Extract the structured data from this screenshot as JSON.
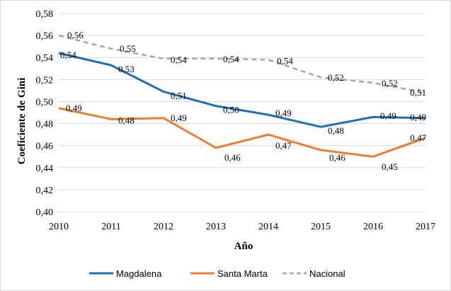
{
  "chart_data": {
    "type": "line",
    "title": "",
    "xlabel": "Año",
    "ylabel": "Coeficiente de Gini",
    "ylim": [
      0.4,
      0.58
    ],
    "y_step": 0.02,
    "grid": true,
    "legend_position": "bottom",
    "x": [
      "2010",
      "2011",
      "2012",
      "2013",
      "2014",
      "2015",
      "2016",
      "2017"
    ],
    "y_ticks": [
      "0,40",
      "0,42",
      "0,44",
      "0,46",
      "0,48",
      "0,50",
      "0,52",
      "0,54",
      "0,56",
      "0,58"
    ],
    "series": [
      {
        "name": "Magdalena",
        "color": "#1f6fb5",
        "style": "solid",
        "values": [
          0.544,
          0.533,
          0.509,
          0.496,
          0.488,
          0.477,
          0.486,
          0.485
        ],
        "labels": [
          "0,54",
          "0,53",
          "0,51",
          "0,50",
          "0,49",
          "0,48",
          "0,49",
          "0,49"
        ]
      },
      {
        "name": "Santa Marta",
        "color": "#ed7d31",
        "style": "solid",
        "values": [
          0.494,
          0.484,
          0.485,
          0.458,
          0.47,
          0.456,
          0.45,
          0.467
        ],
        "labels": [
          "0,49",
          "0,48",
          "0,49",
          "0,46",
          "0,47",
          "0,46",
          "0,45",
          "0,47"
        ]
      },
      {
        "name": "Nacional",
        "color": "#a6a6a6",
        "style": "dashed",
        "values": [
          0.56,
          0.548,
          0.539,
          0.539,
          0.538,
          0.522,
          0.517,
          0.508
        ],
        "labels": [
          "0,56",
          "0,55",
          "0,54",
          "0,54",
          "0,54",
          "0,52",
          "0,52",
          "0,51"
        ]
      }
    ]
  }
}
